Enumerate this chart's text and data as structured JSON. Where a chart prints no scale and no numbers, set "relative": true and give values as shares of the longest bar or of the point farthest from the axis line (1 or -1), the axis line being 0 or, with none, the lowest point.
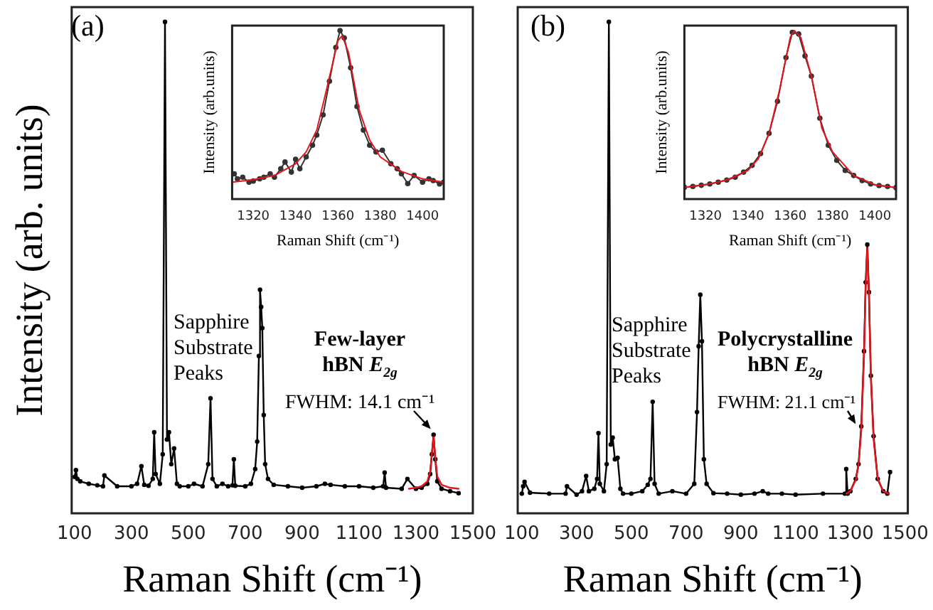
{
  "chart_data": [
    {
      "type": "line",
      "relative": true,
      "xlabel": "Raman Shift (cm⁻¹)",
      "ylabel": "Intensity (arb. units)",
      "xlim": [
        90,
        1500
      ],
      "xticks": [
        100,
        300,
        500,
        700,
        900,
        1100,
        1300,
        1500
      ],
      "tick_labels": "x",
      "marker": "circle",
      "grid": false,
      "annotations": [
        "(a)",
        "Sapphire Substrate Peaks",
        "Few-layer hBN E$_{2g}$",
        {
          "text": "FWHM: 14.1 cm⁻¹",
          "x": 1362,
          "y": 0.16
        }
      ],
      "series": [
        {
          "color": "#000000",
          "x": [
            100,
            105,
            110,
            120,
            150,
            180,
            200,
            205,
            250,
            300,
            320,
            335,
            345,
            360,
            375,
            380,
            385,
            400,
            410,
            418,
            425,
            432,
            440,
            450,
            460,
            470,
            500,
            520,
            550,
            570,
            578,
            585,
            600,
            620,
            640,
            655,
            660,
            665,
            700,
            720,
            735,
            742,
            748,
            752,
            756,
            760,
            765,
            770,
            780,
            800,
            850,
            900,
            950,
            980,
            1000,
            1050,
            1100,
            1150,
            1185,
            1190,
            1195,
            1250,
            1270,
            1300,
            1320,
            1340,
            1350,
            1356,
            1362,
            1368,
            1375,
            1390,
            1420,
            1450
          ],
          "values": [
            0.074,
            0.088,
            0.07,
            0.065,
            0.06,
            0.057,
            0.055,
            0.077,
            0.055,
            0.055,
            0.06,
            0.096,
            0.058,
            0.056,
            0.07,
            0.165,
            0.08,
            0.06,
            0.12,
            1.0,
            0.15,
            0.165,
            0.1,
            0.132,
            0.06,
            0.055,
            0.055,
            0.06,
            0.055,
            0.1,
            0.234,
            0.07,
            0.055,
            0.06,
            0.055,
            0.057,
            0.11,
            0.056,
            0.055,
            0.06,
            0.09,
            0.146,
            0.32,
            0.455,
            0.42,
            0.377,
            0.2,
            0.1,
            0.07,
            0.058,
            0.055,
            0.052,
            0.055,
            0.06,
            0.058,
            0.055,
            0.055,
            0.052,
            0.055,
            0.083,
            0.052,
            0.05,
            0.07,
            0.05,
            0.052,
            0.06,
            0.08,
            0.12,
            0.16,
            0.11,
            0.065,
            0.05,
            0.045,
            0.041
          ]
        },
        {
          "color": "#e8141b",
          "marker": "none",
          "x": [
            1275,
            1300,
            1320,
            1340,
            1350,
            1356,
            1362,
            1368,
            1375,
            1390,
            1420,
            1450
          ],
          "values": [
            0.05,
            0.052,
            0.055,
            0.065,
            0.085,
            0.12,
            0.155,
            0.115,
            0.075,
            0.058,
            0.052,
            0.05
          ]
        }
      ]
    },
    {
      "type": "line",
      "relative": true,
      "xlabel": "Raman Shift (cm⁻¹)",
      "ylabel": "Intensity (arb.units)",
      "xlim": [
        1310,
        1410
      ],
      "xticks": [
        1320,
        1340,
        1360,
        1380,
        1400
      ],
      "tick_labels": "x",
      "marker": "circle",
      "grid": false,
      "series": [
        {
          "color": "#333333",
          "x": [
            1311,
            1312.5,
            1315,
            1318,
            1320,
            1323,
            1325,
            1328,
            1330,
            1333,
            1335,
            1338,
            1340,
            1342,
            1345,
            1348,
            1350,
            1353,
            1356,
            1359,
            1361,
            1363,
            1366,
            1369,
            1372,
            1375,
            1378,
            1381,
            1385,
            1388,
            1390,
            1393,
            1396,
            1400,
            1403,
            1405,
            1408,
            1410
          ],
          "values": [
            0.15,
            0.12,
            0.13,
            0.1,
            0.107,
            0.12,
            0.13,
            0.15,
            0.13,
            0.18,
            0.22,
            0.16,
            0.236,
            0.18,
            0.25,
            0.32,
            0.38,
            0.5,
            0.7,
            0.9,
            1.0,
            0.957,
            0.78,
            0.55,
            0.41,
            0.32,
            0.28,
            0.29,
            0.21,
            0.18,
            0.15,
            0.092,
            0.14,
            0.1,
            0.12,
            0.11,
            0.09,
            0.1
          ]
        },
        {
          "color": "#e8141b",
          "marker": "none",
          "x": [
            1310,
            1320,
            1330,
            1340,
            1345,
            1350,
            1355,
            1360,
            1362,
            1365,
            1370,
            1375,
            1380,
            1390,
            1400,
            1410
          ],
          "values": [
            0.1,
            0.115,
            0.14,
            0.21,
            0.28,
            0.41,
            0.67,
            0.94,
            0.97,
            0.87,
            0.53,
            0.35,
            0.25,
            0.164,
            0.12,
            0.1
          ]
        }
      ]
    },
    {
      "type": "line",
      "relative": true,
      "xlabel": "Raman Shift (cm⁻¹)",
      "xlim": [
        85,
        1510
      ],
      "xticks": [
        100,
        300,
        500,
        700,
        900,
        1100,
        1300,
        1500
      ],
      "tick_labels": "x",
      "marker": "circle",
      "grid": false,
      "annotations": [
        "(b)",
        "Sapphire Substrate Peaks",
        "Polycrystalline hBN E$_{2g}$",
        {
          "text": "FWHM: 21.1 cm⁻¹",
          "x": 1330,
          "y": 0.17
        }
      ],
      "series": [
        {
          "color": "#000000",
          "x": [
            100,
            105,
            110,
            130,
            200,
            260,
            265,
            300,
            320,
            335,
            345,
            365,
            375,
            380,
            385,
            400,
            410,
            418,
            425,
            432,
            440,
            450,
            460,
            470,
            500,
            540,
            560,
            570,
            578,
            585,
            600,
            650,
            700,
            730,
            740,
            746,
            752,
            758,
            765,
            775,
            800,
            850,
            900,
            950,
            980,
            1000,
            1050,
            1100,
            1200,
            1280,
            1285,
            1290,
            1300,
            1320,
            1330,
            1340,
            1350,
            1356,
            1362,
            1368,
            1375,
            1385,
            1400,
            1420,
            1435,
            1445
          ],
          "values": [
            0.04,
            0.055,
            0.064,
            0.042,
            0.04,
            0.04,
            0.055,
            0.038,
            0.045,
            0.076,
            0.045,
            0.05,
            0.07,
            0.163,
            0.06,
            0.045,
            0.1,
            1.0,
            0.14,
            0.154,
            0.11,
            0.113,
            0.05,
            0.04,
            0.04,
            0.045,
            0.058,
            0.07,
            0.227,
            0.06,
            0.04,
            0.045,
            0.04,
            0.06,
            0.206,
            0.34,
            0.445,
            0.35,
            0.11,
            0.06,
            0.041,
            0.04,
            0.038,
            0.04,
            0.045,
            0.04,
            0.04,
            0.038,
            0.04,
            0.04,
            0.09,
            0.04,
            0.045,
            0.07,
            0.1,
            0.177,
            0.33,
            0.47,
            0.547,
            0.45,
            0.28,
            0.157,
            0.07,
            0.045,
            0.04,
            0.084
          ]
        },
        {
          "color": "#e8141b",
          "marker": "none",
          "x": [
            1285,
            1300,
            1320,
            1330,
            1340,
            1350,
            1356,
            1362,
            1368,
            1375,
            1385,
            1400,
            1420,
            1440
          ],
          "values": [
            0.04,
            0.045,
            0.068,
            0.098,
            0.17,
            0.32,
            0.46,
            0.54,
            0.44,
            0.275,
            0.15,
            0.07,
            0.045,
            0.04
          ]
        }
      ]
    },
    {
      "type": "line",
      "relative": true,
      "xlabel": "Raman Shift (cm⁻¹)",
      "ylabel": "Intensity (arb.units)",
      "xlim": [
        1310,
        1410
      ],
      "xticks": [
        1320,
        1340,
        1360,
        1380,
        1400
      ],
      "tick_labels": "x",
      "marker": "circle",
      "grid": false,
      "series": [
        {
          "color": "#333333",
          "x": [
            1310,
            1314,
            1318,
            1322,
            1326,
            1330,
            1334,
            1338,
            1342,
            1346,
            1350,
            1354,
            1358,
            1361,
            1364,
            1367,
            1370,
            1374,
            1378,
            1382,
            1386,
            1390,
            1394,
            1398,
            1402,
            1406,
            1410
          ],
          "values": [
            0.07,
            0.075,
            0.082,
            0.09,
            0.1,
            0.113,
            0.13,
            0.16,
            0.2,
            0.27,
            0.39,
            0.58,
            0.84,
            0.99,
            0.98,
            0.85,
            0.73,
            0.48,
            0.32,
            0.23,
            0.17,
            0.14,
            0.11,
            0.09,
            0.08,
            0.075,
            0.068
          ]
        },
        {
          "color": "#e8141b",
          "marker": "none",
          "x": [
            1310,
            1320,
            1330,
            1340,
            1345,
            1350,
            1355,
            1360,
            1362,
            1365,
            1370,
            1375,
            1380,
            1390,
            1400,
            1410
          ],
          "values": [
            0.07,
            0.085,
            0.113,
            0.17,
            0.24,
            0.39,
            0.65,
            0.96,
            1.0,
            0.96,
            0.73,
            0.42,
            0.28,
            0.14,
            0.085,
            0.068
          ]
        }
      ]
    }
  ]
}
